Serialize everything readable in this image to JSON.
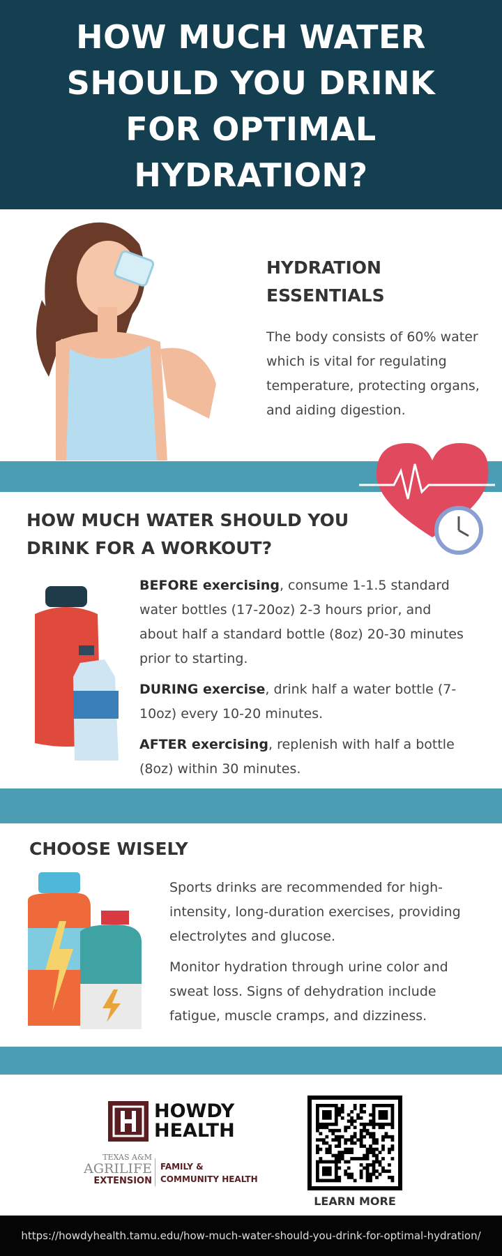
{
  "header": {
    "title": "HOW MUCH WATER SHOULD YOU DRINK FOR OPTIMAL HYDRATION?"
  },
  "essentials": {
    "heading": "HYDRATION ESSENTIALS",
    "text": "The body consists of 60% water which is vital for regulating temperature, protecting organs, and aiding digestion."
  },
  "workout": {
    "heading": "HOW MUCH WATER SHOULD YOU DRINK FOR A WORKOUT?",
    "items": [
      {
        "bold": "BEFORE exercising",
        "text": ", consume 1-1.5 standard water bottles (17-20oz) 2-3 hours prior, and about half a standard bottle (8oz) 20-30 minutes prior to starting."
      },
      {
        "bold": "DURING exercise",
        "text": ", drink half a water bottle (7-10oz) every 10-20 minutes."
      },
      {
        "bold": "AFTER exercising",
        "text": ", replenish with half a bottle (8oz) within 30 minutes."
      }
    ]
  },
  "choose": {
    "heading": "CHOOSE WISELY",
    "paragraphs": [
      "Sports drinks are recommended for high-intensity, long-duration exercises, providing electrolytes and glucose.",
      "Monitor hydration through urine color and sweat loss. Signs of dehydration include fatigue, muscle cramps, and dizziness."
    ]
  },
  "footer": {
    "howdy_line1": "HOWDY",
    "howdy_line2": "HEALTH",
    "agrilife_line1": "TEXAS A&M",
    "agrilife_line2": "AGRILIFE",
    "agrilife_line3": "EXTENSION",
    "dept_line1": "FAMILY &",
    "dept_line2": "COMMUNITY HEALTH",
    "qr_label": "LEARN MORE",
    "url": "https://howdyhealth.tamu.edu/how-much-water-should-you-drink-for-optimal-hydration/"
  },
  "colors": {
    "header": "#143f50",
    "band": "#4a9db3",
    "brand_maroon": "#5a1e22"
  }
}
